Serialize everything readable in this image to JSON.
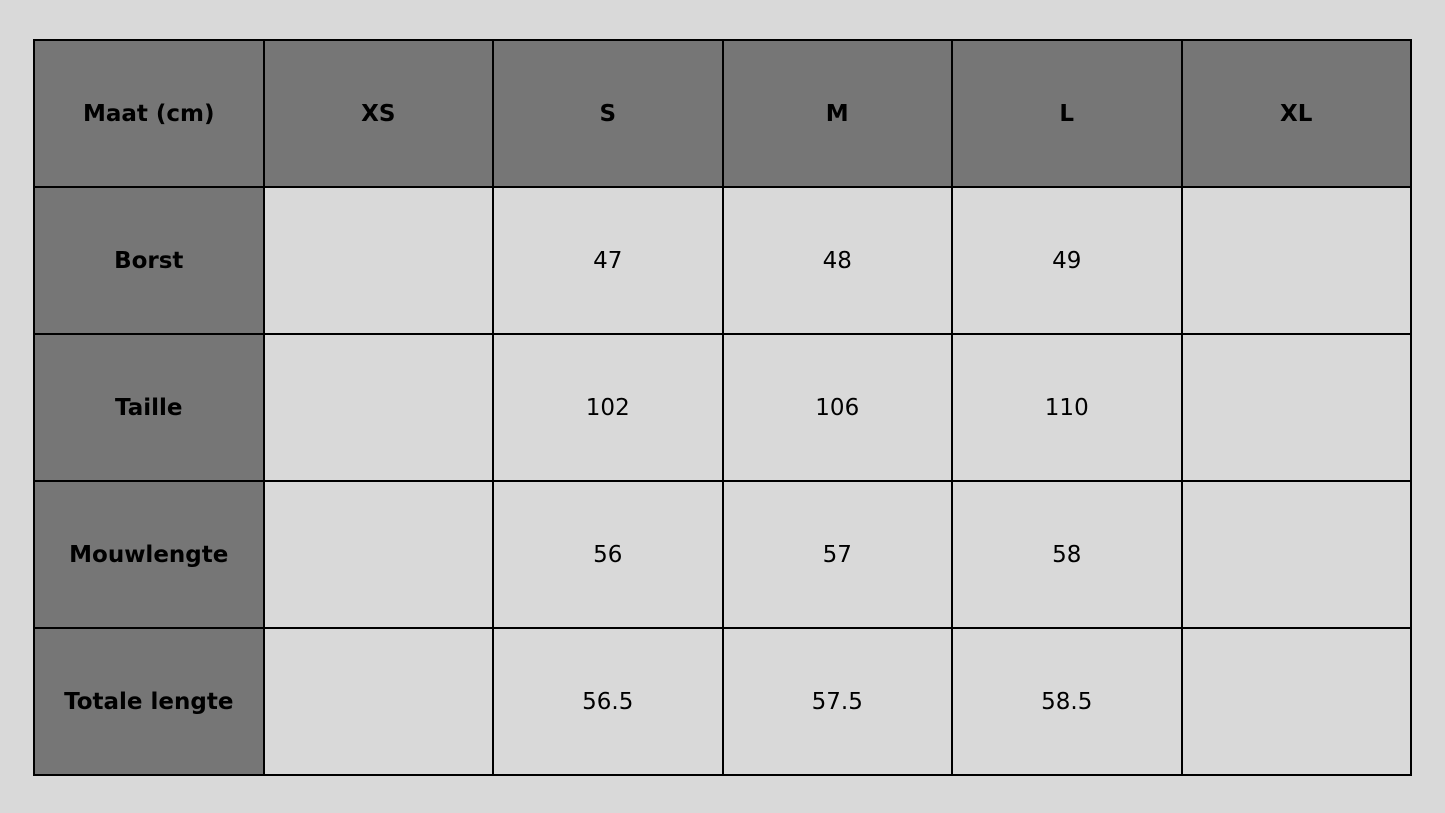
{
  "colors": {
    "header_bg": "#767676",
    "cell_bg": "#d9d9d9",
    "border": "#000000"
  },
  "table": {
    "corner": "Maat (cm)",
    "columns": [
      "XS",
      "S",
      "M",
      "L",
      "XL"
    ],
    "rows": [
      {
        "label": "Borst",
        "values": [
          "",
          "47",
          "48",
          "49",
          ""
        ]
      },
      {
        "label": "Taille",
        "values": [
          "",
          "102",
          "106",
          "110",
          ""
        ]
      },
      {
        "label": "Mouwlengte",
        "values": [
          "",
          "56",
          "57",
          "58",
          ""
        ]
      },
      {
        "label": "Totale lengte",
        "values": [
          "",
          "56.5",
          "57.5",
          "58.5",
          ""
        ]
      }
    ]
  }
}
